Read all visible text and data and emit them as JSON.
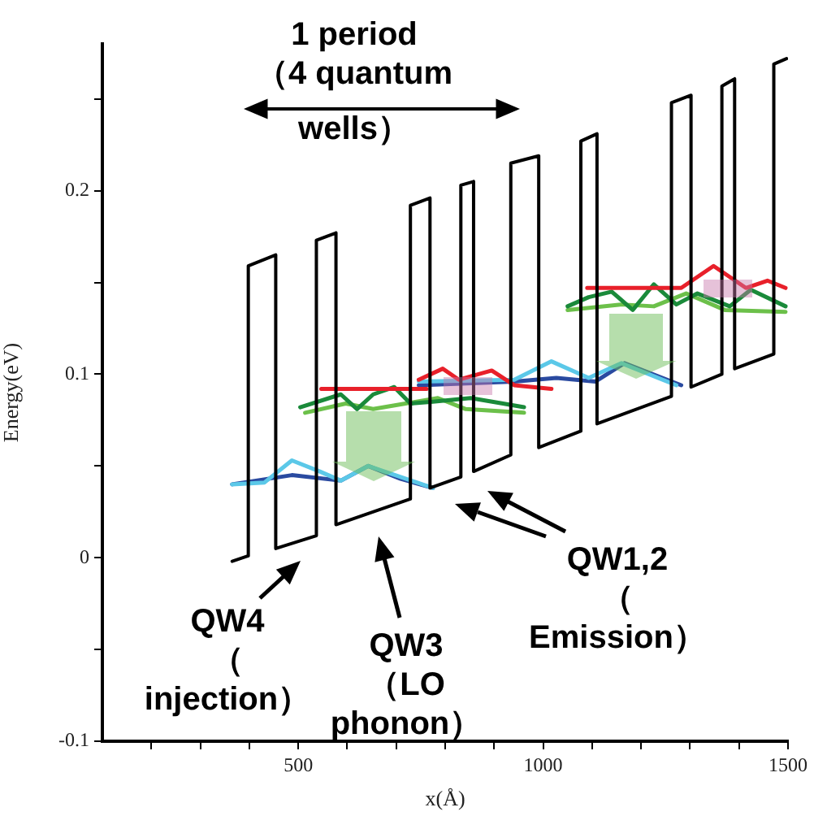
{
  "chart_data": {
    "type": "line",
    "xlabel": "x(Å)",
    "ylabel": "Energy(eV)",
    "xlim": [
      100,
      1500
    ],
    "ylim": [
      -0.1,
      0.28
    ],
    "xticks": [
      {
        "value": 200,
        "label": null
      },
      {
        "value": 300,
        "label": null
      },
      {
        "value": 400,
        "label": null
      },
      500,
      {
        "value": 600,
        "label": null
      },
      {
        "value": 700,
        "label": null
      },
      {
        "value": 800,
        "label": null
      },
      {
        "value": 900,
        "label": null
      },
      1000,
      {
        "value": 1100,
        "label": null
      },
      {
        "value": 1200,
        "label": null
      },
      {
        "value": 1300,
        "label": null
      },
      {
        "value": 1400,
        "label": null
      },
      1500
    ],
    "yticks": [
      -0.1,
      {
        "value": -0.05,
        "label": null
      },
      0,
      {
        "value": 0.05,
        "label": null
      },
      0.1,
      {
        "value": 0.15,
        "label": null
      },
      0.2,
      {
        "value": 0.25,
        "label": null
      }
    ],
    "grid": false,
    "legend": false,
    "marker": "none",
    "line_style": "solid",
    "series": [
      {
        "color": "#000000",
        "x": [
          365,
          398,
          398,
          454,
          454,
          537,
          537,
          577,
          577,
          729,
          729,
          769,
          769,
          832,
          832,
          858,
          858,
          934,
          934,
          991,
          991,
          1077,
          1077,
          1110,
          1110,
          1262,
          1262,
          1302,
          1302,
          1365,
          1365,
          1391,
          1391,
          1471,
          1471,
          1497
        ],
        "values": [
          -0.002,
          0.001,
          0.159,
          0.165,
          0.005,
          0.012,
          0.173,
          0.177,
          0.018,
          0.032,
          0.192,
          0.196,
          0.038,
          0.044,
          0.203,
          0.205,
          0.047,
          0.056,
          0.215,
          0.219,
          0.06,
          0.069,
          0.227,
          0.231,
          0.073,
          0.088,
          0.248,
          0.252,
          0.093,
          0.1,
          0.257,
          0.261,
          0.103,
          0.111,
          0.269,
          0.272
        ]
      },
      {
        "color": "#5bc8e8",
        "x": [
          365,
          431,
          487,
          544,
          587,
          643,
          709,
          775
        ],
        "values": [
          0.04,
          0.041,
          0.053,
          0.047,
          0.042,
          0.05,
          0.044,
          0.038
        ]
      },
      {
        "color": "#2a4aa0",
        "x": [
          365,
          487,
          587,
          643,
          709,
          775
        ],
        "values": [
          0.04,
          0.045,
          0.042,
          0.05,
          0.043,
          0.038
        ]
      },
      {
        "color": "#e8202a",
        "x": [
          547,
          762
        ],
        "values": [
          0.092,
          0.092
        ]
      },
      {
        "color": "#1a8a3a",
        "x": [
          504,
          587,
          620,
          653,
          696,
          729,
          775,
          852,
          918,
          961
        ],
        "values": [
          0.082,
          0.089,
          0.081,
          0.089,
          0.093,
          0.084,
          0.085,
          0.087,
          0.084,
          0.082
        ]
      },
      {
        "color": "#6cc04a",
        "x": [
          514,
          597,
          653,
          719,
          785,
          842,
          961
        ],
        "values": [
          0.079,
          0.084,
          0.081,
          0.084,
          0.087,
          0.081,
          0.079
        ]
      },
      {
        "color": "#e8202a",
        "x": [
          746,
          795,
          828,
          895,
          941,
          1017
        ],
        "values": [
          0.097,
          0.103,
          0.097,
          0.102,
          0.094,
          0.092
        ]
      },
      {
        "color": "#5bc8e8",
        "x": [
          746,
          941,
          1017,
          1093,
          1160,
          1272
        ],
        "values": [
          0.096,
          0.097,
          0.107,
          0.098,
          0.106,
          0.094
        ]
      },
      {
        "color": "#2a4aa0",
        "x": [
          746,
          941,
          1027,
          1107,
          1166,
          1282
        ],
        "values": [
          0.094,
          0.096,
          0.098,
          0.096,
          0.106,
          0.094
        ]
      },
      {
        "color": "#e8202a",
        "x": [
          1090,
          1282,
          1348,
          1414,
          1458,
          1495
        ],
        "values": [
          0.147,
          0.147,
          0.159,
          0.147,
          0.151,
          0.147
        ]
      },
      {
        "color": "#1a8a3a",
        "x": [
          1050,
          1093,
          1140,
          1183,
          1226,
          1272,
          1315,
          1381,
          1424,
          1495
        ],
        "values": [
          0.137,
          0.142,
          0.145,
          0.135,
          0.149,
          0.138,
          0.144,
          0.137,
          0.146,
          0.137
        ]
      },
      {
        "color": "#6cc04a",
        "x": [
          1050,
          1160,
          1226,
          1292,
          1371,
          1495
        ],
        "values": [
          0.135,
          0.138,
          0.137,
          0.144,
          0.135,
          0.134
        ]
      }
    ],
    "annotations": [
      "1 period\n（4 quantum\nwells）",
      "QW4\n（\ninjection）",
      "QW3\n（LO\nphonon）",
      "QW1,2\n（\nEmission）"
    ]
  }
}
